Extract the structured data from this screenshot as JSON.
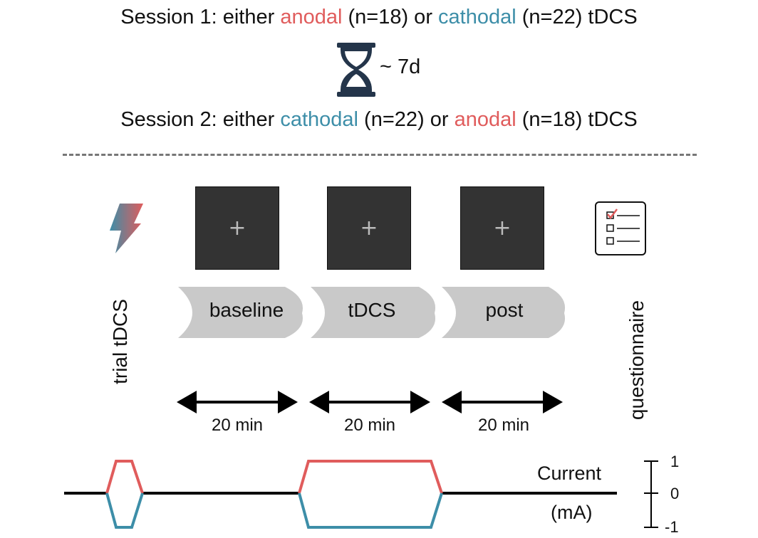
{
  "session1": {
    "prefix": "Session 1: either ",
    "first_condition": "anodal",
    "first_n": " (n=18) or ",
    "second_condition": "cathodal",
    "second_n": " (n=22) tDCS"
  },
  "wait": {
    "label": "~ 7d",
    "icon": "hourglass-icon"
  },
  "session2": {
    "prefix": "Session 2: either ",
    "first_condition": "cathodal",
    "first_n": " (n=22) or ",
    "second_condition": "anodal",
    "second_n": " (n=18) tDCS"
  },
  "trial": {
    "label": "trial tDCS",
    "icon": "lightning-icon"
  },
  "phases": [
    {
      "label": "baseline",
      "duration": "20 min"
    },
    {
      "label": "tDCS",
      "duration": "20 min"
    },
    {
      "label": "post",
      "duration": "20 min"
    }
  ],
  "questionnaire": {
    "label": "questionnaire",
    "icon": "checklist-icon"
  },
  "current": {
    "label_line1": "Current",
    "label_line2": "(mA)",
    "ticks": [
      "1",
      "0",
      "-1"
    ]
  },
  "colors": {
    "anodal": "#e05c5c",
    "cathodal": "#3d8ea8",
    "phase_arrow": "#c9c9c9",
    "screen": "#333333"
  }
}
